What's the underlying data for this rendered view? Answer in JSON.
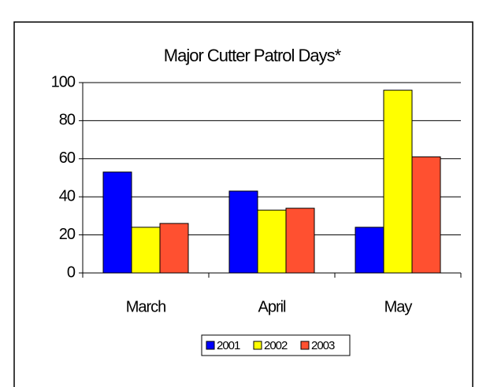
{
  "chart_data": {
    "type": "bar",
    "title": "Major Cutter Patrol Days*",
    "categories": [
      "March",
      "April",
      "May"
    ],
    "series": [
      {
        "name": "2001",
        "color": "#0000ff",
        "values": [
          53,
          43,
          24
        ]
      },
      {
        "name": "2002",
        "color": "#ffff00",
        "values": [
          24,
          33,
          96
        ]
      },
      {
        "name": "2003",
        "color": "#ff5030",
        "values": [
          26,
          34,
          61
        ]
      }
    ],
    "ylim": [
      0,
      100
    ],
    "yticks": [
      0,
      20,
      40,
      60,
      80,
      100
    ],
    "grid": true,
    "legend": "bottom"
  }
}
